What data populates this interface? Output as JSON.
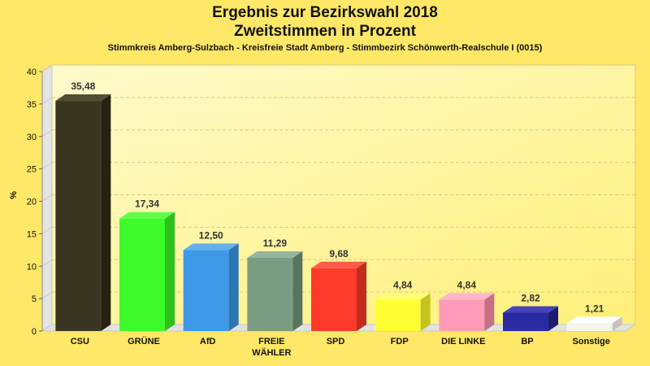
{
  "chart_data": {
    "type": "bar",
    "title": "Ergebnis zur Bezirkswahl 2018",
    "title_line2": "Zweitstimmen in Prozent",
    "subtitle": "Stimmkreis Amberg-Sulzbach - Kreisfreie Stadt Amberg - Stimmbezirk Schönwerth-Realschule I (0015)",
    "ylabel": "%",
    "xlabel": "",
    "ylim": [
      0,
      40
    ],
    "yticks": [
      0,
      5,
      10,
      15,
      20,
      25,
      30,
      35,
      40
    ],
    "grid": true,
    "bar_style": "3d",
    "categories": [
      "CSU",
      "GRÜNE",
      "AfD",
      "FREIE WÄHLER",
      "SPD",
      "FDP",
      "DIE LINKE",
      "BP",
      "Sonstige"
    ],
    "category_lines": [
      [
        "CSU"
      ],
      [
        "GRÜNE"
      ],
      [
        "AfD"
      ],
      [
        "FREIE",
        "WÄHLER"
      ],
      [
        "SPD"
      ],
      [
        "FDP"
      ],
      [
        "DIE LINKE"
      ],
      [
        "BP"
      ],
      [
        "Sonstige"
      ]
    ],
    "values": [
      35.48,
      17.34,
      12.5,
      11.29,
      9.68,
      4.84,
      4.84,
      2.82,
      1.21
    ],
    "value_labels": [
      "35,48",
      "17,34",
      "12,50",
      "11,29",
      "9,68",
      "4,84",
      "4,84",
      "2,82",
      "1,21"
    ],
    "colors": [
      "#3b3621",
      "#3dfa2a",
      "#3e9ae8",
      "#7a9c80",
      "#ff3a2a",
      "#ffff33",
      "#ff9bb7",
      "#2a2aa0",
      "#f5f5f0"
    ],
    "colors_side": [
      "#262212",
      "#2cc21c",
      "#2d74b2",
      "#587360",
      "#c02c1e",
      "#c4c41e",
      "#c47088",
      "#1c1c72",
      "#c4c4bc"
    ],
    "colors_top": [
      "#524c30",
      "#5fff4c",
      "#64b0ee",
      "#98b49c",
      "#ff5a4a",
      "#ffff70",
      "#ffb6cb",
      "#4444b8",
      "#ffffff"
    ],
    "background": "#ffe867"
  }
}
